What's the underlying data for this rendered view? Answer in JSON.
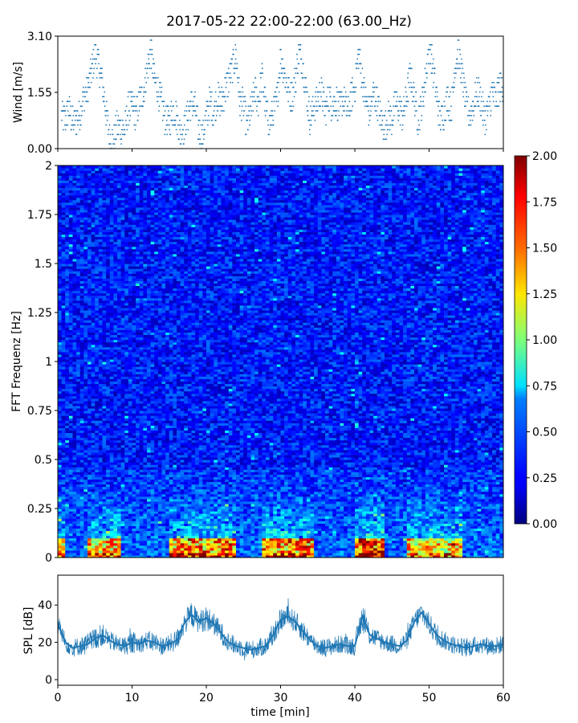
{
  "title": "2017-05-22 22:00-22:00 (63.00_Hz)",
  "colors": {
    "series": "#1f77b4",
    "colormap": "jet"
  },
  "chart_data": [
    {
      "type": "scatter",
      "name": "wind",
      "xlim": [
        0,
        60
      ],
      "ylim": [
        0,
        3.1
      ],
      "ylabel": "Wind [m/s]",
      "yticks": [
        {
          "v": 0.0,
          "label": "0.00"
        },
        {
          "v": 1.55,
          "label": "1.55"
        },
        {
          "v": 3.1,
          "label": "3.10"
        }
      ],
      "xtick_values": [
        0,
        10,
        20,
        30,
        40,
        50,
        60
      ],
      "series": [
        {
          "values": [
            [
              0.5,
              0.9
            ],
            [
              1,
              0.8
            ],
            [
              1.5,
              1.1
            ],
            [
              2,
              0.7
            ],
            [
              2.5,
              0.8
            ],
            [
              3,
              1.0
            ],
            [
              3.5,
              1.4
            ],
            [
              4,
              1.6
            ],
            [
              4.5,
              2.1
            ],
            [
              5,
              2.6
            ],
            [
              5.5,
              2.3
            ],
            [
              6,
              1.8
            ],
            [
              6.5,
              1.0
            ],
            [
              7,
              0.3
            ],
            [
              7.5,
              0.2
            ],
            [
              8,
              0.6
            ],
            [
              8.5,
              0.6
            ],
            [
              9,
              0.5
            ],
            [
              9.5,
              1.1
            ],
            [
              10,
              1.2
            ],
            [
              10.5,
              0.9
            ],
            [
              11,
              1.3
            ],
            [
              11.5,
              1.5
            ],
            [
              12,
              2.1
            ],
            [
              12.5,
              2.7
            ],
            [
              13,
              1.9
            ],
            [
              13.5,
              1.6
            ],
            [
              14,
              1.2
            ],
            [
              14.5,
              0.8
            ],
            [
              15,
              0.7
            ],
            [
              15.5,
              1.1
            ],
            [
              16,
              0.9
            ],
            [
              16.5,
              0.4
            ],
            [
              17,
              0.6
            ],
            [
              17.5,
              0.9
            ],
            [
              18,
              1.3
            ],
            [
              18.5,
              1.1
            ],
            [
              19,
              0.5
            ],
            [
              19.5,
              0.3
            ],
            [
              20,
              0.9
            ],
            [
              20.5,
              1.3
            ],
            [
              21,
              1.0
            ],
            [
              21.5,
              1.4
            ],
            [
              22,
              1.2
            ],
            [
              22.5,
              1.6
            ],
            [
              23,
              1.9
            ],
            [
              23.5,
              2.2
            ],
            [
              24,
              2.6
            ],
            [
              24.5,
              1.3
            ],
            [
              25,
              1.2
            ],
            [
              25.5,
              0.6
            ],
            [
              26,
              1.0
            ],
            [
              26.5,
              1.6
            ],
            [
              27,
              1.3
            ],
            [
              27.5,
              2.0
            ],
            [
              28,
              1.1
            ],
            [
              28.5,
              0.7
            ],
            [
              29,
              1.0
            ],
            [
              29.5,
              1.3
            ],
            [
              30,
              2.5
            ],
            [
              30.5,
              2.1
            ],
            [
              31,
              1.6
            ],
            [
              31.5,
              1.4
            ],
            [
              32,
              1.9
            ],
            [
              32.5,
              2.7
            ],
            [
              33,
              2.3
            ],
            [
              33.5,
              1.5
            ],
            [
              34,
              0.8
            ],
            [
              34.5,
              1.2
            ],
            [
              35,
              1.3
            ],
            [
              35.5,
              1.6
            ],
            [
              36,
              1.0
            ],
            [
              36.5,
              1.4
            ],
            [
              37,
              1.2
            ],
            [
              37.5,
              1.3
            ],
            [
              38,
              1.1
            ],
            [
              38.5,
              1.4
            ],
            [
              39,
              1.0
            ],
            [
              39.5,
              1.4
            ],
            [
              40,
              1.7
            ],
            [
              40.5,
              2.6
            ],
            [
              41,
              1.9
            ],
            [
              41.5,
              1.3
            ],
            [
              42,
              1.0
            ],
            [
              42.5,
              1.5
            ],
            [
              43,
              1.3
            ],
            [
              43.5,
              0.8
            ],
            [
              44,
              0.6
            ],
            [
              44.5,
              0.9
            ],
            [
              45,
              0.8
            ],
            [
              45.5,
              1.3
            ],
            [
              46,
              1.1
            ],
            [
              46.5,
              0.9
            ],
            [
              47,
              1.5
            ],
            [
              47.5,
              2.0
            ],
            [
              48,
              1.4
            ],
            [
              48.5,
              0.8
            ],
            [
              49,
              1.2
            ],
            [
              49.5,
              1.9
            ],
            [
              50,
              2.9
            ],
            [
              50.5,
              2.2
            ],
            [
              51,
              1.5
            ],
            [
              51.5,
              0.8
            ],
            [
              52,
              1.0
            ],
            [
              52.5,
              1.4
            ],
            [
              53,
              1.1
            ],
            [
              53.5,
              2.3
            ],
            [
              54,
              2.7
            ],
            [
              54.5,
              1.9
            ],
            [
              55,
              1.2
            ],
            [
              55.5,
              0.9
            ],
            [
              56,
              1.2
            ],
            [
              56.5,
              1.6
            ],
            [
              57,
              1.3
            ],
            [
              57.5,
              0.8
            ],
            [
              58,
              1.1
            ],
            [
              58.5,
              1.6
            ],
            [
              59,
              1.3
            ],
            [
              59.5,
              1.7
            ]
          ]
        }
      ]
    },
    {
      "type": "heatmap",
      "name": "spectrogram",
      "xlim": [
        0,
        60
      ],
      "ylim": [
        0,
        2
      ],
      "ylabel": "FFT Frequenz [Hz]",
      "yticks": [
        {
          "v": 0,
          "label": "0"
        },
        {
          "v": 0.25,
          "label": "0.25"
        },
        {
          "v": 0.5,
          "label": "0.5"
        },
        {
          "v": 0.75,
          "label": "0.75"
        },
        {
          "v": 1,
          "label": "1"
        },
        {
          "v": 1.25,
          "label": "1.25"
        },
        {
          "v": 1.5,
          "label": "1.5"
        },
        {
          "v": 1.75,
          "label": "1.75"
        },
        {
          "v": 2,
          "label": "2"
        }
      ],
      "colorbar": {
        "range": [
          0,
          2
        ],
        "ticks": [
          "0.00",
          "0.25",
          "0.50",
          "0.75",
          "1.00",
          "1.25",
          "1.50",
          "1.75",
          "2.00"
        ]
      },
      "base_value": 0.25,
      "low_frequency_hotspots": [
        {
          "x_start": 0,
          "x_end": 1,
          "peak": 1.5
        },
        {
          "x_start": 4,
          "x_end": 8.5,
          "peak": 1.7
        },
        {
          "x_start": 15,
          "x_end": 24,
          "peak": 1.8
        },
        {
          "x_start": 27.5,
          "x_end": 34.5,
          "peak": 1.8
        },
        {
          "x_start": 40,
          "x_end": 44,
          "peak": 2.0
        },
        {
          "x_start": 47,
          "x_end": 54.5,
          "peak": 1.6
        }
      ]
    },
    {
      "type": "line",
      "name": "spl",
      "xlim": [
        0,
        60
      ],
      "ylim": [
        -3,
        56
      ],
      "xlabel": "time [min]",
      "ylabel": "SPL [dB]",
      "yticks": [
        {
          "v": 0,
          "label": "0"
        },
        {
          "v": 20,
          "label": "20"
        },
        {
          "v": 40,
          "label": "40"
        }
      ],
      "xticks": [
        {
          "v": 0,
          "label": "0"
        },
        {
          "v": 10,
          "label": "10"
        },
        {
          "v": 20,
          "label": "20"
        },
        {
          "v": 30,
          "label": "30"
        },
        {
          "v": 40,
          "label": "40"
        },
        {
          "v": 50,
          "label": "50"
        },
        {
          "v": 60,
          "label": "60"
        }
      ],
      "series": [
        {
          "x": [
            0,
            1,
            2,
            3,
            4,
            5,
            6,
            7,
            8,
            9,
            10,
            11,
            12,
            13,
            14,
            15,
            16,
            17,
            18,
            19,
            20,
            21,
            22,
            23,
            24,
            25,
            26,
            27,
            28,
            29,
            30,
            31,
            32,
            33,
            34,
            35,
            36,
            37,
            38,
            39,
            40,
            41,
            42,
            43,
            44,
            45,
            46,
            47,
            48,
            49,
            50,
            51,
            52,
            53,
            54,
            55,
            56,
            57,
            58,
            59,
            60
          ],
          "y": [
            30,
            20,
            17,
            18,
            19,
            22,
            24,
            21,
            19,
            18,
            20,
            19,
            21,
            20,
            18,
            19,
            21,
            30,
            35,
            31,
            33,
            30,
            25,
            20,
            18,
            17,
            16,
            17,
            18,
            24,
            32,
            34,
            31,
            26,
            21,
            18,
            17,
            18,
            19,
            18,
            18,
            34,
            24,
            22,
            20,
            19,
            18,
            21,
            31,
            36,
            30,
            24,
            21,
            19,
            18,
            17,
            18,
            19,
            18,
            18,
            19
          ],
          "band": [
            6,
            5,
            5,
            5,
            6,
            6,
            6,
            5,
            5,
            5,
            6,
            5,
            5,
            6,
            5,
            5,
            6,
            6,
            7,
            6,
            7,
            6,
            6,
            5,
            5,
            5,
            5,
            5,
            5,
            6,
            6,
            6,
            6,
            6,
            5,
            5,
            5,
            5,
            5,
            5,
            5,
            8,
            6,
            5,
            5,
            5,
            5,
            5,
            6,
            6,
            6,
            6,
            5,
            5,
            5,
            5,
            5,
            5,
            5,
            5,
            5
          ]
        }
      ]
    }
  ]
}
